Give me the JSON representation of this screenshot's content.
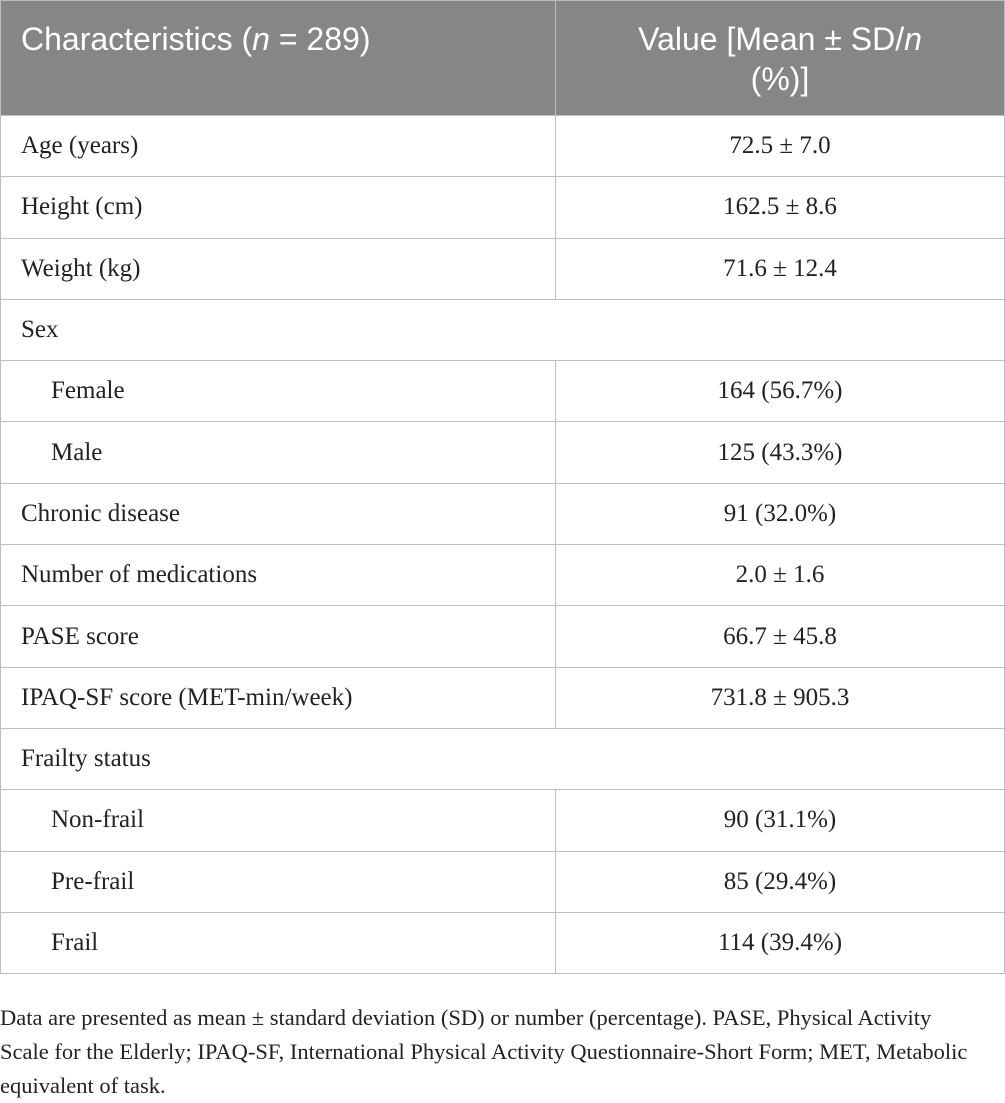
{
  "table": {
    "header": [
      [
        "Characteristics (",
        "n",
        " = 289)"
      ],
      [
        "Value [Mean ± SD/",
        "n",
        " (%)]"
      ]
    ],
    "rows": [
      {
        "label": "Age (years)",
        "value": "72.5 ± 7.0"
      },
      {
        "label": "Height (cm)",
        "value": "162.5 ± 8.6"
      },
      {
        "label": "Weight (kg)",
        "value": "71.6 ± 12.4"
      },
      {
        "label": "Sex",
        "items": [
          {
            "label": "Female",
            "value": "164 (56.7%)"
          },
          {
            "label": "Male",
            "value": "125 (43.3%)"
          }
        ]
      },
      {
        "label": "Chronic disease",
        "value": "91 (32.0%)"
      },
      {
        "label": "Number of medications",
        "value": "2.0 ± 1.6"
      },
      {
        "label": "PASE score",
        "value": "66.7 ± 45.8"
      },
      {
        "label": "IPAQ-SF score (MET-min/week)",
        "value": "731.8 ± 905.3"
      },
      {
        "label": "Frailty status",
        "items": [
          {
            "label": "Non-frail",
            "value": "90 (31.1%)"
          },
          {
            "label": "Pre-frail",
            "value": "85 (29.4%)"
          },
          {
            "label": "Frail",
            "value": "114 (39.4%)"
          }
        ]
      }
    ]
  },
  "footnote": "Data are presented as mean ± standard deviation (SD) or number (percentage). PASE, Physical Activity Scale for the Elderly; IPAQ-SF, International Physical Activity Questionnaire-Short Form; MET, Metabolic equivalent of task."
}
